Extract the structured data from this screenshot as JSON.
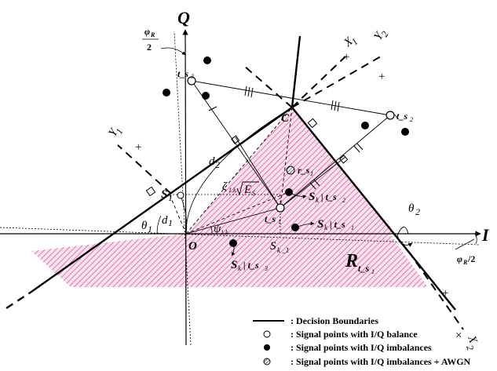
{
  "axes": {
    "q": "Q",
    "i": "I",
    "x1": "X",
    "x1_sub": "1",
    "x2": "X",
    "x2_sub": "2",
    "y1": "Y",
    "y1_sub": "1",
    "y2": "Y",
    "y2_sub": "2",
    "origin": "O",
    "c": "C"
  },
  "labels": {
    "phi_r_half_top": "2",
    "phi_r_half_top_num": "φ",
    "phi_r_half_top_sub": "R",
    "phi_r_half_right": "/2",
    "phi_r_half_right_sym": "φ",
    "phi_r_half_right_sub": "R",
    "theta1": "θ",
    "theta1_sub": "1",
    "theta2": "θ",
    "theta2_sub": "2",
    "d1": "d",
    "d1_sub": "1",
    "d2": "d",
    "d2_sub": "2",
    "s1": "S",
    "s1_sub": "1",
    "ts1": "t_s",
    "ts1_sub": "1",
    "ts2": "t_s",
    "ts2_sub": "2",
    "ts3": "t_s",
    "ts3_sub": "3",
    "rs1": "r_s",
    "rs1_sub": "1",
    "zeta": "ζ",
    "zeta_sub": "1,k",
    "sqrt_es": "E",
    "sqrt_es_sub": "S",
    "psi": "ψ",
    "psi_sub": "1,k",
    "sk1": "S",
    "sk1_sub": "k _1",
    "sk_ts2": "S",
    "sk_ts2_rest": "| t_s",
    "sk_ts2_sub": "2",
    "sk_ts1": "S",
    "sk_ts1_rest": "| t_s",
    "sk_ts1_sub": "1",
    "sk_ts3": "S",
    "sk_ts3_rest": "| t_s",
    "sk_ts3_sub": "3",
    "k": "k",
    "region": "R",
    "region_sub": "t_s",
    "region_subsub": "1",
    "plus": "+",
    "times": "×"
  },
  "legend": [
    {
      "symbol": "line",
      "text": ": Decision Boundaries"
    },
    {
      "symbol": "open-circle",
      "text": ": Signal points with I/Q balance"
    },
    {
      "symbol": "filled-circle",
      "text": ": Signal points with I/Q imbalances"
    },
    {
      "symbol": "hatched-circle",
      "text": ": Signal points with I/Q imbalances + AWGN"
    }
  ],
  "colors": {
    "region_hatch": "#e0559a",
    "region_fill": "#fbe3ef",
    "ink": "#000000"
  }
}
